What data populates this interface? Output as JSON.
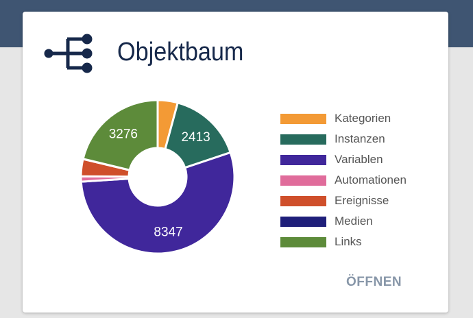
{
  "header": {
    "title": "Objektbaum",
    "icon": "object-tree-icon"
  },
  "chart_data": {
    "type": "pie",
    "donut": true,
    "categories": [
      "Kategorien",
      "Instanzen",
      "Variablen",
      "Automationen",
      "Ereignisse",
      "Medien",
      "Links"
    ],
    "values": [
      650,
      2413,
      8347,
      170,
      560,
      5,
      3276
    ],
    "labels_shown": [
      "",
      "2413",
      "8347",
      "",
      "",
      "",
      "3276"
    ],
    "colors": [
      "#f39a35",
      "#276b5d",
      "#40279b",
      "#e06c9b",
      "#cf4f2b",
      "#1f1f7a",
      "#5d8b3a"
    ],
    "legend": "right"
  },
  "footer": {
    "open_label": "ÖFFNEN"
  }
}
